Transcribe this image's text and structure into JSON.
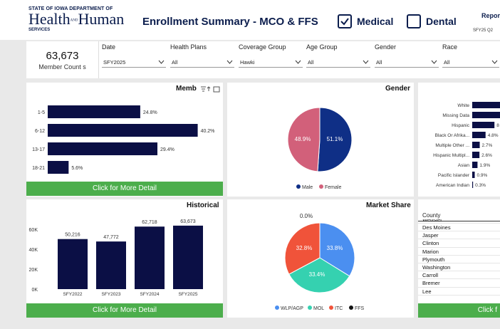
{
  "header": {
    "logo_line1": "STATE OF IOWA DEPARTMENT OF",
    "logo_line2a": "Health",
    "logo_and": "AND",
    "logo_line2b": "Human",
    "logo_line3": "SERVICES",
    "title": "Enrollment Summary - MCO & FFS",
    "medical_label": "Medical",
    "medical_checked": true,
    "dental_label": "Dental",
    "dental_checked": false,
    "report_label": "Repor",
    "report_period": "SFY25 Q2"
  },
  "kpi": {
    "value": "63,673",
    "label": "Member Count s"
  },
  "filters": [
    {
      "label": "Date",
      "value": "SFY2025"
    },
    {
      "label": "Health Plans",
      "value": "All"
    },
    {
      "label": "Coverage Group",
      "value": "Hawki"
    },
    {
      "label": "Age Group",
      "value": "All"
    },
    {
      "label": "Gender",
      "value": "All"
    },
    {
      "label": "Race",
      "value": "All"
    }
  ],
  "member_panel": {
    "title": "Memb",
    "button": "Click for More Detail"
  },
  "gender_panel": {
    "title": "Gender"
  },
  "race_panel": {},
  "historical_panel": {
    "title": "Historical",
    "button": "Click for More Detail"
  },
  "market_panel": {
    "title": "Market Share"
  },
  "county_panel": {
    "header": "County",
    "button": "Click f"
  },
  "chart_data": [
    {
      "name": "age-group",
      "type": "bar",
      "orientation": "horizontal",
      "categories": [
        "1-5",
        "6-12",
        "13-17",
        "18-21"
      ],
      "values": [
        24.8,
        40.2,
        29.4,
        5.6
      ],
      "value_labels": [
        "24.8%",
        "40.2%",
        "29.4%",
        "5.6%"
      ],
      "color": "#0b0f45"
    },
    {
      "name": "gender",
      "type": "pie",
      "categories": [
        "Male",
        "Female"
      ],
      "values": [
        51.1,
        48.9
      ],
      "value_labels": [
        "51.1%",
        "48.9%"
      ],
      "colors": [
        "#0f2f86",
        "#d2607a"
      ],
      "legend": [
        "Male",
        "Female"
      ]
    },
    {
      "name": "race",
      "type": "bar",
      "orientation": "horizontal",
      "categories": [
        "White",
        "Missing Data",
        "Hispanic",
        "Black Or Afrika...",
        "Multiple Other ...",
        "Hispanic Multipl...",
        "Asian",
        "Pacific Islander",
        "American Indian"
      ],
      "values": [
        null,
        null,
        8,
        4.8,
        2.7,
        2.6,
        1.9,
        0.9,
        0.3
      ],
      "value_labels": [
        "",
        "",
        "8",
        "4.8%",
        "2.7%",
        "2.6%",
        "1.9%",
        "0.9%",
        "0.3%"
      ],
      "color": "#0b0f45"
    },
    {
      "name": "historical",
      "type": "bar",
      "categories": [
        "SFY2022",
        "SFY2023",
        "SFY2024",
        "SFY2025"
      ],
      "values": [
        50216,
        47772,
        62718,
        63673
      ],
      "value_labels": [
        "50,216",
        "47,772",
        "62,718",
        "63,673"
      ],
      "y_ticks": [
        "0K",
        "20K",
        "40K",
        "60K"
      ],
      "ylim": [
        0,
        60000
      ],
      "color": "#0b0f45"
    },
    {
      "name": "market-share",
      "type": "pie",
      "categories": [
        "WLP/AGP",
        "MOL",
        "ITC",
        "FFS"
      ],
      "values": [
        33.8,
        33.4,
        32.8,
        0.0
      ],
      "value_labels": [
        "33.8%",
        "33.4%",
        "32.8%",
        "0.0%"
      ],
      "colors": [
        "#4b8ff0",
        "#35d1b0",
        "#f0533a",
        "#111111"
      ],
      "legend": [
        "WLP/AGP",
        "MOL",
        "ITC",
        "FFS"
      ]
    }
  ],
  "counties": [
    "Webster",
    "Des Moines",
    "Jasper",
    "Clinton",
    "Marion",
    "Plymouth",
    "Washington",
    "Carroll",
    "Bremer",
    "Lee"
  ]
}
